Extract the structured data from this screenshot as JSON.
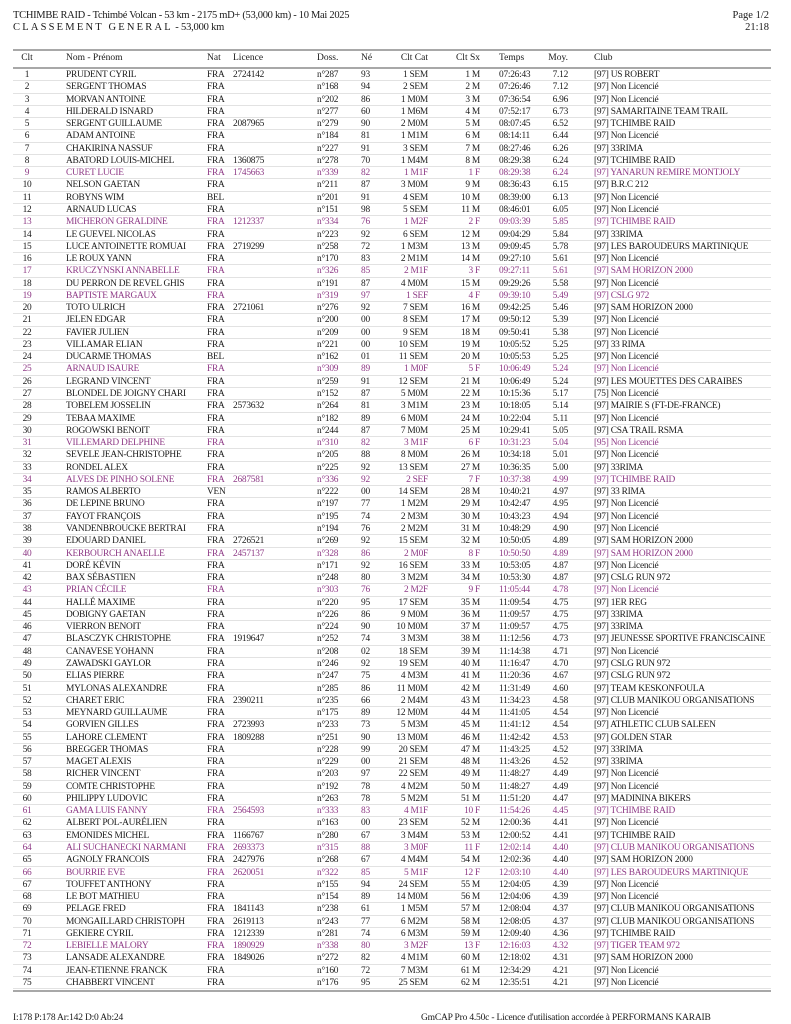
{
  "header": {
    "title": "TCHIMBE RAID  - Tchimbé Volcan - 53 km - 2175 mD+ (53,000 km) - 10 Mai 2025",
    "subtitle_spaced": "CLASSEMENT GENERAL",
    "subtitle_rest": " - 53,000 km",
    "page": "Page 1/2",
    "time": "21:18"
  },
  "colors": {
    "text": "#1a1a1a",
    "female": "#8e3a86"
  },
  "columns": [
    "Clt",
    "Nom - Prénom",
    "Nat",
    "Licence",
    "Doss.",
    "Né",
    "Clt Cat",
    "Clt Sx",
    "Temps",
    "Moy.",
    "Club"
  ],
  "rows": [
    [
      "1",
      "PRUDENT CYRIL",
      "FRA",
      "2724142",
      "n°287",
      "93",
      "1 SEM",
      "1 M",
      "07:26:43",
      "7.12",
      "[97] US ROBERT"
    ],
    [
      "2",
      "SERGENT THOMAS",
      "FRA",
      "",
      "n°168",
      "94",
      "2 SEM",
      "2 M",
      "07:26:46",
      "7.12",
      "[97] Non Licencié"
    ],
    [
      "3",
      "MORVAN ANTOINE",
      "FRA",
      "",
      "n°202",
      "86",
      "1 M0M",
      "3 M",
      "07:36:54",
      "6.96",
      "[97] Non Licencié"
    ],
    [
      "4",
      "HILDERALD ISNARD",
      "FRA",
      "",
      "n°277",
      "60",
      "1 M6M",
      "4 M",
      "07:52:17",
      "6.73",
      "[97] SAMARITAINE TEAM TRAIL"
    ],
    [
      "5",
      "SERGENT GUILLAUME",
      "FRA",
      "2087965",
      "n°279",
      "90",
      "2 M0M",
      "5 M",
      "08:07:45",
      "6.52",
      "[97] TCHIMBE RAID"
    ],
    [
      "6",
      "ADAM ANTOINE",
      "FRA",
      "",
      "n°184",
      "81",
      "1 M1M",
      "6 M",
      "08:14:11",
      "6.44",
      "[97] Non Licencié"
    ],
    [
      "7",
      "CHAKIRINA NASSUF",
      "FRA",
      "",
      "n°227",
      "91",
      "3 SEM",
      "7 M",
      "08:27:46",
      "6.26",
      "[97] 33RIMA"
    ],
    [
      "8",
      "ABATORD LOUIS-MICHEL",
      "FRA",
      "1360875",
      "n°278",
      "70",
      "1 M4M",
      "8 M",
      "08:29:38",
      "6.24",
      "[97] TCHIMBE RAID"
    ],
    [
      "9",
      "CURET LUCIE",
      "FRA",
      "1745663",
      "n°339",
      "82",
      "1 M1F",
      "1 F",
      "08:29:38",
      "6.24",
      "[97] YANARUN REMIRE MONTJOLY"
    ],
    [
      "10",
      "NELSON GAETAN",
      "FRA",
      "",
      "n°211",
      "87",
      "3 M0M",
      "9 M",
      "08:36:43",
      "6.15",
      "[97] B.R.C 212"
    ],
    [
      "11",
      "ROBYNS WIM",
      "BEL",
      "",
      "n°201",
      "91",
      "4 SEM",
      "10 M",
      "08:39:00",
      "6.13",
      "[97] Non Licencié"
    ],
    [
      "12",
      "ARNAUD LUCAS",
      "FRA",
      "",
      "n°151",
      "98",
      "5 SEM",
      "11 M",
      "08:46:01",
      "6.05",
      "[97] Non Licencié"
    ],
    [
      "13",
      "MICHERON GERALDINE",
      "FRA",
      "1212337",
      "n°334",
      "76",
      "1 M2F",
      "2 F",
      "09:03:39",
      "5.85",
      "[97] TCHIMBE RAID"
    ],
    [
      "14",
      "LE GUEVEL NICOLAS",
      "FRA",
      "",
      "n°223",
      "92",
      "6 SEM",
      "12 M",
      "09:04:29",
      "5.84",
      "[97] 33RIMA"
    ],
    [
      "15",
      "LUCE ANTOINETTE ROMUAI",
      "FRA",
      "2719299",
      "n°258",
      "72",
      "1 M3M",
      "13 M",
      "09:09:45",
      "5.78",
      "[97] LES BAROUDEURS MARTINIQUE"
    ],
    [
      "16",
      "LE ROUX YANN",
      "FRA",
      "",
      "n°170",
      "83",
      "2 M1M",
      "14 M",
      "09:27:10",
      "5.61",
      "[97] Non Licencié"
    ],
    [
      "17",
      "KRUCZYNSKI ANNABELLE",
      "FRA",
      "",
      "n°326",
      "85",
      "2 M1F",
      "3 F",
      "09:27:11",
      "5.61",
      "[97] SAM HORIZON 2000"
    ],
    [
      "18",
      "DU PERRON DE REVEL GHIS",
      "FRA",
      "",
      "n°191",
      "87",
      "4 M0M",
      "15 M",
      "09:29:26",
      "5.58",
      "[97] Non Licencié"
    ],
    [
      "19",
      "BAPTISTE MARGAUX",
      "FRA",
      "",
      "n°319",
      "97",
      "1 SEF",
      "4 F",
      "09:39:10",
      "5.49",
      "[97] CSLG 972"
    ],
    [
      "20",
      "TOTO ULRICH",
      "FRA",
      "2721061",
      "n°276",
      "92",
      "7 SEM",
      "16 M",
      "09:42:25",
      "5.46",
      "[97] SAM HORIZON 2000"
    ],
    [
      "21",
      "JELEN EDGAR",
      "FRA",
      "",
      "n°200",
      "00",
      "8 SEM",
      "17 M",
      "09:50:12",
      "5.39",
      "[97] Non Licencié"
    ],
    [
      "22",
      "FAVIER JULIEN",
      "FRA",
      "",
      "n°209",
      "00",
      "9 SEM",
      "18 M",
      "09:50:41",
      "5.38",
      "[97] Non Licencié"
    ],
    [
      "23",
      "VILLAMAR ELIAN",
      "FRA",
      "",
      "n°221",
      "00",
      "10 SEM",
      "19 M",
      "10:05:52",
      "5.25",
      "[97] 33 RIMA"
    ],
    [
      "24",
      "DUCARME THOMAS",
      "BEL",
      "",
      "n°162",
      "01",
      "11 SEM",
      "20 M",
      "10:05:53",
      "5.25",
      "[97] Non Licencié"
    ],
    [
      "25",
      "ARNAUD ISAURE",
      "FRA",
      "",
      "n°309",
      "89",
      "1 M0F",
      "5 F",
      "10:06:49",
      "5.24",
      "[97] Non Licencié"
    ],
    [
      "26",
      "LEGRAND VINCENT",
      "FRA",
      "",
      "n°259",
      "91",
      "12 SEM",
      "21 M",
      "10:06:49",
      "5.24",
      "[97] LES MOUETTES DES CARAIBES"
    ],
    [
      "27",
      "BLONDEL DE JOIGNY CHARI",
      "FRA",
      "",
      "n°152",
      "87",
      "5 M0M",
      "22 M",
      "10:15:36",
      "5.17",
      "[75] Non Licencié"
    ],
    [
      "28",
      "TOBELEM JOSSELIN",
      "FRA",
      "2573632",
      "n°264",
      "81",
      "3 M1M",
      "23 M",
      "10:18:05",
      "5.14",
      "[97] MAIRIE S  (FT-DE-FRANCE)"
    ],
    [
      "29",
      "TEBAA MAXIME",
      "FRA",
      "",
      "n°182",
      "89",
      "6 M0M",
      "24 M",
      "10:22:04",
      "5.11",
      "[97] Non Licencié"
    ],
    [
      "30",
      "ROGOWSKI BENOIT",
      "FRA",
      "",
      "n°244",
      "87",
      "7 M0M",
      "25 M",
      "10:29:41",
      "5.05",
      "[97] CSA TRAIL RSMA"
    ],
    [
      "31",
      "VILLEMARD DELPHINE",
      "FRA",
      "",
      "n°310",
      "82",
      "3 M1F",
      "6 F",
      "10:31:23",
      "5.04",
      "[95] Non Licencié"
    ],
    [
      "32",
      "SEVELE JEAN-CHRISTOPHE",
      "FRA",
      "",
      "n°205",
      "88",
      "8 M0M",
      "26 M",
      "10:34:18",
      "5.01",
      "[97] Non Licencié"
    ],
    [
      "33",
      "RONDEL ALEX",
      "FRA",
      "",
      "n°225",
      "92",
      "13 SEM",
      "27 M",
      "10:36:35",
      "5.00",
      "[97] 33RIMA"
    ],
    [
      "34",
      "ALVES DE PINHO SOLENE",
      "FRA",
      "2687581",
      "n°336",
      "92",
      "2 SEF",
      "7 F",
      "10:37:38",
      "4.99",
      "[97] TCHIMBE RAID"
    ],
    [
      "35",
      "RAMOS ALBERTO",
      "VEN",
      "",
      "n°222",
      "00",
      "14 SEM",
      "28 M",
      "10:40:21",
      "4.97",
      "[97] 33 RIMA"
    ],
    [
      "36",
      "DE LEPINE BRUNO",
      "FRA",
      "",
      "n°197",
      "77",
      "1 M2M",
      "29 M",
      "10:42:47",
      "4.95",
      "[97] Non Licencié"
    ],
    [
      "37",
      "FAYOT FRANÇOIS",
      "FRA",
      "",
      "n°195",
      "74",
      "2 M3M",
      "30 M",
      "10:43:23",
      "4.94",
      "[97] Non Licencié"
    ],
    [
      "38",
      "VANDENBROUCKE BERTRAI",
      "FRA",
      "",
      "n°194",
      "76",
      "2 M2M",
      "31 M",
      "10:48:29",
      "4.90",
      "[97] Non Licencié"
    ],
    [
      "39",
      "EDOUARD DANIEL",
      "FRA",
      "2726521",
      "n°269",
      "92",
      "15 SEM",
      "32 M",
      "10:50:05",
      "4.89",
      "[97] SAM HORIZON 2000"
    ],
    [
      "40",
      "KERBOURCH ANAELLE",
      "FRA",
      "2457137",
      "n°328",
      "86",
      "2 M0F",
      "8 F",
      "10:50:50",
      "4.89",
      "[97] SAM HORIZON 2000"
    ],
    [
      "41",
      "DORÉ KÉVIN",
      "FRA",
      "",
      "n°171",
      "92",
      "16 SEM",
      "33 M",
      "10:53:05",
      "4.87",
      "[97] Non Licencié"
    ],
    [
      "42",
      "BAX SÉBASTIEN",
      "FRA",
      "",
      "n°248",
      "80",
      "3 M2M",
      "34 M",
      "10:53:30",
      "4.87",
      "[97] CSLG RUN 972"
    ],
    [
      "43",
      "PRIAN CÉCILE",
      "FRA",
      "",
      "n°303",
      "76",
      "2 M2F",
      "9 F",
      "11:05:44",
      "4.78",
      "[97] Non Licencié"
    ],
    [
      "44",
      "HALLÉ MAXIME",
      "FRA",
      "",
      "n°220",
      "95",
      "17 SEM",
      "35 M",
      "11:09:54",
      "4.75",
      "[97] 1ER REG"
    ],
    [
      "45",
      "DOBIGNY GAETAN",
      "FRA",
      "",
      "n°226",
      "86",
      "9 M0M",
      "36 M",
      "11:09:57",
      "4.75",
      "[97] 33RIMA"
    ],
    [
      "46",
      "VIERRON BENOIT",
      "FRA",
      "",
      "n°224",
      "90",
      "10 M0M",
      "37 M",
      "11:09:57",
      "4.75",
      "[97] 33RIMA"
    ],
    [
      "47",
      "BLASCZYK CHRISTOPHE",
      "FRA",
      "1919647",
      "n°252",
      "74",
      "3 M3M",
      "38 M",
      "11:12:56",
      "4.73",
      "[97] JEUNESSE SPORTIVE FRANCISCAINE"
    ],
    [
      "48",
      "CANAVESE YOHANN",
      "FRA",
      "",
      "n°208",
      "02",
      "18 SEM",
      "39 M",
      "11:14:38",
      "4.71",
      "[97] Non Licencié"
    ],
    [
      "49",
      "ZAWADSKI GAYLOR",
      "FRA",
      "",
      "n°246",
      "92",
      "19 SEM",
      "40 M",
      "11:16:47",
      "4.70",
      "[97] CSLG RUN 972"
    ],
    [
      "50",
      "ELIAS PIERRE",
      "FRA",
      "",
      "n°247",
      "75",
      "4 M3M",
      "41 M",
      "11:20:36",
      "4.67",
      "[97] CSLG RUN 972"
    ],
    [
      "51",
      "MYLONAS ALEXANDRE",
      "FRA",
      "",
      "n°285",
      "86",
      "11 M0M",
      "42 M",
      "11:31:49",
      "4.60",
      "[97] TEAM KESKONFOULA"
    ],
    [
      "52",
      "CHARET ERIC",
      "FRA",
      "2390211",
      "n°235",
      "66",
      "2 M4M",
      "43 M",
      "11:34:23",
      "4.58",
      "[97] CLUB MANIKOU ORGANISATIONS"
    ],
    [
      "53",
      "MEYNARD GUILLAUME",
      "FRA",
      "",
      "n°175",
      "89",
      "12 M0M",
      "44 M",
      "11:41:05",
      "4.54",
      "[97] Non Licencié"
    ],
    [
      "54",
      "GORVIEN GILLES",
      "FRA",
      "2723993",
      "n°233",
      "73",
      "5 M3M",
      "45 M",
      "11:41:12",
      "4.54",
      "[97] ATHLETIC CLUB SALEEN"
    ],
    [
      "55",
      "LAHORE CLEMENT",
      "FRA",
      "1809288",
      "n°251",
      "90",
      "13 M0M",
      "46 M",
      "11:42:42",
      "4.53",
      "[97] GOLDEN STAR"
    ],
    [
      "56",
      "BREGGER THOMAS",
      "FRA",
      "",
      "n°228",
      "99",
      "20 SEM",
      "47 M",
      "11:43:25",
      "4.52",
      "[97] 33RIMA"
    ],
    [
      "57",
      "MAGET ALEXIS",
      "FRA",
      "",
      "n°229",
      "00",
      "21 SEM",
      "48 M",
      "11:43:26",
      "4.52",
      "[97] 33RIMA"
    ],
    [
      "58",
      "RICHER VINCENT",
      "FRA",
      "",
      "n°203",
      "97",
      "22 SEM",
      "49 M",
      "11:48:27",
      "4.49",
      "[97] Non Licencié"
    ],
    [
      "59",
      "COMTE CHRISTOPHE",
      "FRA",
      "",
      "n°192",
      "78",
      "4 M2M",
      "50 M",
      "11:48:27",
      "4.49",
      "[97] Non Licencié"
    ],
    [
      "60",
      "PHILIPPY LUDOVIC",
      "FRA",
      "",
      "n°263",
      "78",
      "5 M2M",
      "51 M",
      "11:51:20",
      "4.47",
      "[97] MADININA BIKERS"
    ],
    [
      "61",
      "GAMA LUIS FANNY",
      "FRA",
      "2564593",
      "n°333",
      "83",
      "4 M1F",
      "10 F",
      "11:54:26",
      "4.45",
      "[97] TCHIMBE RAID"
    ],
    [
      "62",
      "ALBERT POL-AURÉLIEN",
      "FRA",
      "",
      "n°163",
      "00",
      "23 SEM",
      "52 M",
      "12:00:36",
      "4.41",
      "[97] Non Licencié"
    ],
    [
      "63",
      "EMONIDES MICHEL",
      "FRA",
      "1166767",
      "n°280",
      "67",
      "3 M4M",
      "53 M",
      "12:00:52",
      "4.41",
      "[97] TCHIMBE RAID"
    ],
    [
      "64",
      "ALI SUCHANECKI NARMANI",
      "FRA",
      "2693373",
      "n°315",
      "88",
      "3 M0F",
      "11 F",
      "12:02:14",
      "4.40",
      "[97] CLUB MANIKOU ORGANISATIONS"
    ],
    [
      "65",
      "AGNOLY FRANCOIS",
      "FRA",
      "2427976",
      "n°268",
      "67",
      "4 M4M",
      "54 M",
      "12:02:36",
      "4.40",
      "[97] SAM HORIZON 2000"
    ],
    [
      "66",
      "BOURRIE EVE",
      "FRA",
      "2620051",
      "n°322",
      "85",
      "5 M1F",
      "12 F",
      "12:03:10",
      "4.40",
      "[97] LES BAROUDEURS MARTINIQUE"
    ],
    [
      "67",
      "TOUFFET ANTHONY",
      "FRA",
      "",
      "n°155",
      "94",
      "24 SEM",
      "55 M",
      "12:04:05",
      "4.39",
      "[97] Non Licencié"
    ],
    [
      "68",
      "LE BOT MATHIEU",
      "FRA",
      "",
      "n°154",
      "89",
      "14 M0M",
      "56 M",
      "12:04:06",
      "4.39",
      "[97] Non Licencié"
    ],
    [
      "69",
      "PELAGE FRED",
      "FRA",
      "1841143",
      "n°238",
      "61",
      "1 M5M",
      "57 M",
      "12:08:04",
      "4.37",
      "[97] CLUB MANIKOU ORGANISATIONS"
    ],
    [
      "70",
      "MONGAILLARD CHRISTOPH",
      "FRA",
      "2619113",
      "n°243",
      "77",
      "6 M2M",
      "58 M",
      "12:08:05",
      "4.37",
      "[97] CLUB MANIKOU ORGANISATIONS"
    ],
    [
      "71",
      "GEKIERE CYRIL",
      "FRA",
      "1212339",
      "n°281",
      "74",
      "6 M3M",
      "59 M",
      "12:09:40",
      "4.36",
      "[97] TCHIMBE RAID"
    ],
    [
      "72",
      "LEBIELLE MALORY",
      "FRA",
      "1890929",
      "n°338",
      "80",
      "3 M2F",
      "13 F",
      "12:16:03",
      "4.32",
      "[97] TIGER TEAM 972"
    ],
    [
      "73",
      "LANSADE ALEXANDRE",
      "FRA",
      "1849026",
      "n°272",
      "82",
      "4 M1M",
      "60 M",
      "12:18:02",
      "4.31",
      "[97] SAM HORIZON 2000"
    ],
    [
      "74",
      "JEAN-ETIENNE FRANCK",
      "FRA",
      "",
      "n°160",
      "72",
      "7 M3M",
      "61 M",
      "12:34:29",
      "4.21",
      "[97] Non Licencié"
    ],
    [
      "75",
      "CHABBERT VINCENT",
      "FRA",
      "",
      "n°176",
      "95",
      "25 SEM",
      "62 M",
      "12:35:51",
      "4.21",
      "[97] Non Licencié"
    ]
  ],
  "footer": {
    "stats": "I:178 P:178 Ar:142 D:0 Ab:24",
    "software": "GmCAP Pro 4.50c - Licence d'utilisation accordée à PERFORMANS KARAIB"
  }
}
